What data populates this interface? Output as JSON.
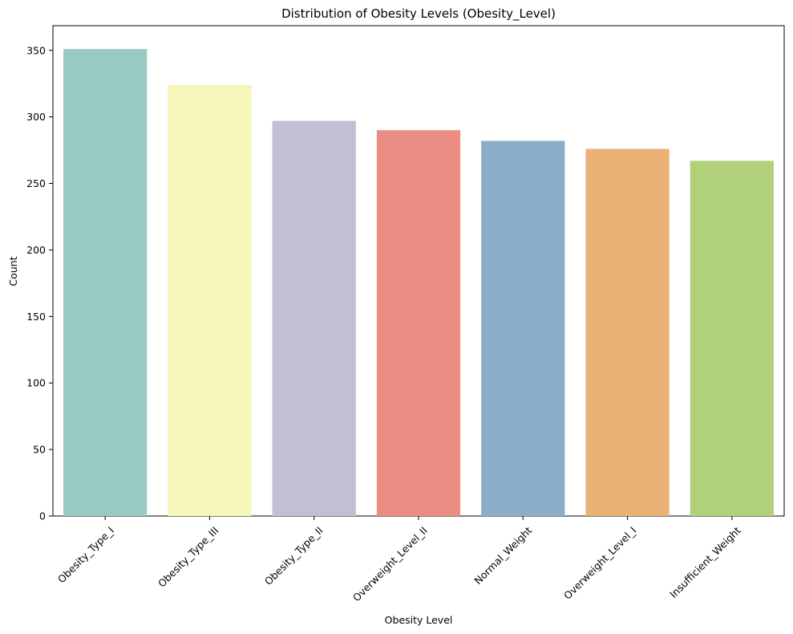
{
  "chart_data": {
    "type": "bar",
    "title": "Distribution of Obesity Levels (Obesity_Level)",
    "xlabel": "Obesity Level",
    "ylabel": "Count",
    "categories": [
      "Obesity_Type_I",
      "Obesity_Type_III",
      "Obesity_Type_II",
      "Overweight_Level_II",
      "Normal_Weight",
      "Overweight_Level_I",
      "Insufficient_Weight"
    ],
    "values": [
      351,
      324,
      297,
      290,
      282,
      276,
      267
    ],
    "colors": [
      "#99cac3",
      "#f6f6bb",
      "#c2bed6",
      "#ea8e83",
      "#8bafc9",
      "#eab275",
      "#b0d179"
    ],
    "ylim": [
      0,
      368.55
    ],
    "yticks": [
      0,
      50,
      100,
      150,
      200,
      250,
      300,
      350
    ],
    "grid": false,
    "legend": "none",
    "xtick_rotation_deg": 45
  }
}
